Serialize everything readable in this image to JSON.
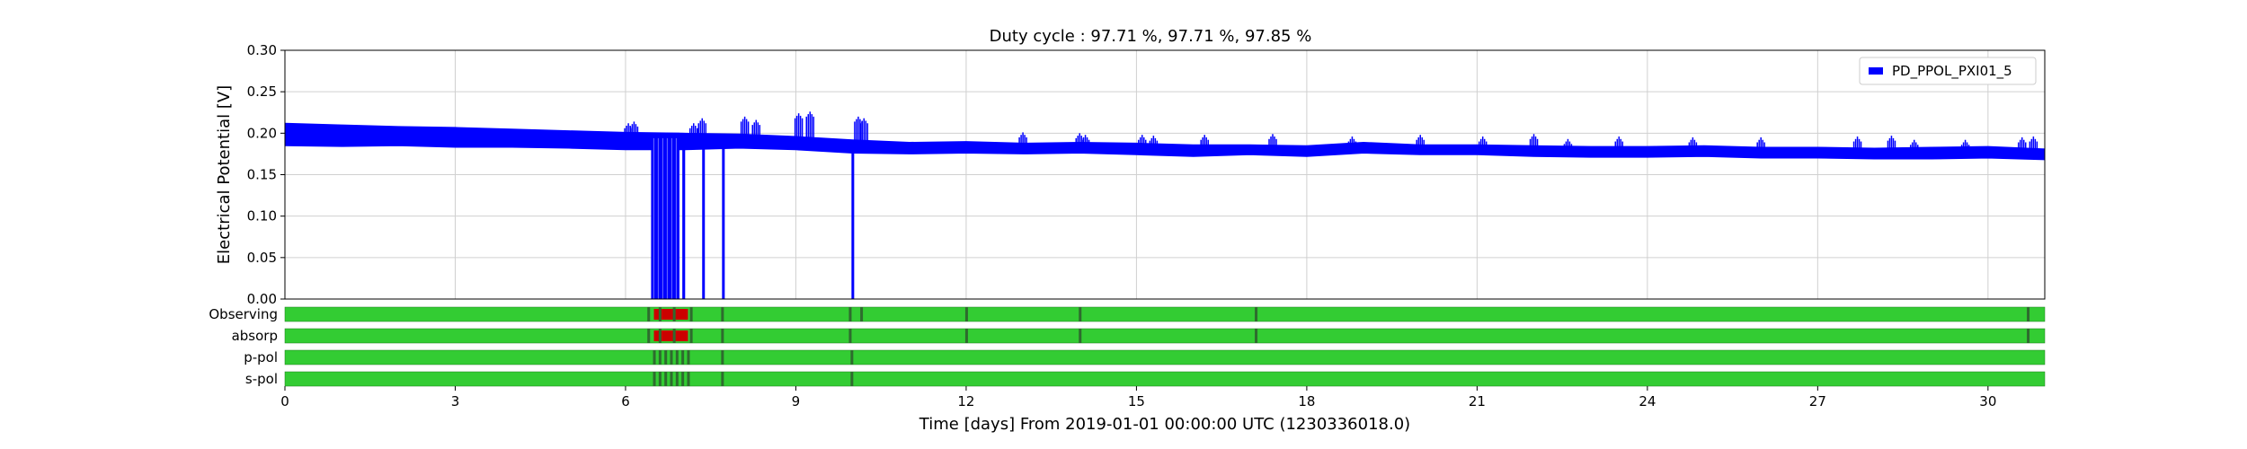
{
  "chart_data": {
    "type": "line",
    "title": "Duty cycle : 97.71 %, 97.71 %, 97.85 %",
    "ylabel": "Electrical Potential [V]",
    "xlabel": "Time [days] From 2019-01-01 00:00:00 UTC (1230336018.0)",
    "ylim": [
      0,
      0.3
    ],
    "xlim": [
      0,
      31
    ],
    "yticks": [
      "0.00",
      "0.05",
      "0.10",
      "0.15",
      "0.20",
      "0.25",
      "0.30"
    ],
    "xticks": [
      "0",
      "3",
      "6",
      "9",
      "12",
      "15",
      "18",
      "21",
      "24",
      "27",
      "30"
    ],
    "grid": true,
    "legend_position": "top-right",
    "series": [
      {
        "name": "PD_PPOL_PXI01_5",
        "color": "#0000ff",
        "band": [
          {
            "x": 0,
            "lo": 0.185,
            "hi": 0.212
          },
          {
            "x": 1,
            "lo": 0.184,
            "hi": 0.21
          },
          {
            "x": 2,
            "lo": 0.185,
            "hi": 0.208
          },
          {
            "x": 3,
            "lo": 0.183,
            "hi": 0.207
          },
          {
            "x": 4,
            "lo": 0.183,
            "hi": 0.205
          },
          {
            "x": 5,
            "lo": 0.182,
            "hi": 0.203
          },
          {
            "x": 6,
            "lo": 0.18,
            "hi": 0.201
          },
          {
            "x": 7,
            "lo": 0.18,
            "hi": 0.2
          },
          {
            "x": 8,
            "lo": 0.182,
            "hi": 0.199
          },
          {
            "x": 9,
            "lo": 0.18,
            "hi": 0.196
          },
          {
            "x": 10,
            "lo": 0.176,
            "hi": 0.192
          },
          {
            "x": 11,
            "lo": 0.175,
            "hi": 0.189
          },
          {
            "x": 12,
            "lo": 0.176,
            "hi": 0.19
          },
          {
            "x": 13,
            "lo": 0.175,
            "hi": 0.188
          },
          {
            "x": 14,
            "lo": 0.176,
            "hi": 0.189
          },
          {
            "x": 15,
            "lo": 0.174,
            "hi": 0.188
          },
          {
            "x": 16,
            "lo": 0.172,
            "hi": 0.186
          },
          {
            "x": 17,
            "lo": 0.174,
            "hi": 0.186
          },
          {
            "x": 18,
            "lo": 0.172,
            "hi": 0.185
          },
          {
            "x": 19,
            "lo": 0.176,
            "hi": 0.189
          },
          {
            "x": 20,
            "lo": 0.174,
            "hi": 0.186
          },
          {
            "x": 21,
            "lo": 0.174,
            "hi": 0.186
          },
          {
            "x": 22,
            "lo": 0.172,
            "hi": 0.185
          },
          {
            "x": 23,
            "lo": 0.171,
            "hi": 0.184
          },
          {
            "x": 24,
            "lo": 0.171,
            "hi": 0.184
          },
          {
            "x": 25,
            "lo": 0.172,
            "hi": 0.185
          },
          {
            "x": 26,
            "lo": 0.17,
            "hi": 0.183
          },
          {
            "x": 27,
            "lo": 0.17,
            "hi": 0.183
          },
          {
            "x": 28,
            "lo": 0.169,
            "hi": 0.182
          },
          {
            "x": 29,
            "lo": 0.169,
            "hi": 0.183
          },
          {
            "x": 30,
            "lo": 0.17,
            "hi": 0.184
          },
          {
            "x": 31,
            "lo": 0.168,
            "hi": 0.181
          }
        ],
        "spikes": [
          {
            "x": 6.05,
            "y": 0.212
          },
          {
            "x": 6.15,
            "y": 0.214
          },
          {
            "x": 7.2,
            "y": 0.212
          },
          {
            "x": 7.35,
            "y": 0.218
          },
          {
            "x": 8.1,
            "y": 0.22
          },
          {
            "x": 8.3,
            "y": 0.216
          },
          {
            "x": 9.05,
            "y": 0.224
          },
          {
            "x": 9.25,
            "y": 0.226
          },
          {
            "x": 10.1,
            "y": 0.22
          },
          {
            "x": 10.2,
            "y": 0.218
          },
          {
            "x": 13.0,
            "y": 0.201
          },
          {
            "x": 14.0,
            "y": 0.2
          },
          {
            "x": 14.1,
            "y": 0.198
          },
          {
            "x": 15.1,
            "y": 0.198
          },
          {
            "x": 15.3,
            "y": 0.197
          },
          {
            "x": 16.2,
            "y": 0.198
          },
          {
            "x": 17.4,
            "y": 0.199
          },
          {
            "x": 18.8,
            "y": 0.196
          },
          {
            "x": 20.0,
            "y": 0.198
          },
          {
            "x": 21.1,
            "y": 0.196
          },
          {
            "x": 22.0,
            "y": 0.199
          },
          {
            "x": 22.6,
            "y": 0.193
          },
          {
            "x": 23.5,
            "y": 0.196
          },
          {
            "x": 24.8,
            "y": 0.195
          },
          {
            "x": 26.0,
            "y": 0.195
          },
          {
            "x": 27.7,
            "y": 0.196
          },
          {
            "x": 28.3,
            "y": 0.197
          },
          {
            "x": 28.7,
            "y": 0.192
          },
          {
            "x": 29.6,
            "y": 0.192
          },
          {
            "x": 30.6,
            "y": 0.195
          },
          {
            "x": 30.8,
            "y": 0.196
          }
        ],
        "dropouts": [
          {
            "from": 6.45,
            "to": 6.95
          },
          {
            "from": 7.0,
            "to": 7.05
          },
          {
            "from": 7.35,
            "to": 7.38
          },
          {
            "from": 7.7,
            "to": 7.73
          },
          {
            "from": 9.98,
            "to": 10.02
          }
        ]
      }
    ],
    "segments": {
      "active_color": "#33cc33",
      "flag_color": "#cc0000",
      "gap_color": "#2e6b2e",
      "rows": [
        {
          "label": "Observing",
          "gaps": [
            6.4,
            6.6,
            6.85,
            7.15,
            7.7,
            9.95,
            10.15,
            12.0,
            14.0,
            17.1,
            30.7
          ],
          "flagged": [
            6.5,
            7.1
          ]
        },
        {
          "label": "absorp",
          "gaps": [
            6.4,
            6.6,
            6.85,
            7.15,
            7.7,
            9.95,
            12.0,
            14.0,
            17.1,
            30.7
          ],
          "flagged": [
            6.5,
            7.1
          ]
        },
        {
          "label": "p-pol",
          "gaps": [
            6.5,
            6.6,
            6.7,
            6.8,
            6.9,
            7.0,
            7.1,
            7.7,
            9.98
          ],
          "flagged": null
        },
        {
          "label": "s-pol",
          "gaps": [
            6.5,
            6.6,
            6.7,
            6.8,
            6.9,
            7.0,
            7.1,
            7.7,
            9.98
          ],
          "flagged": null
        }
      ]
    }
  }
}
